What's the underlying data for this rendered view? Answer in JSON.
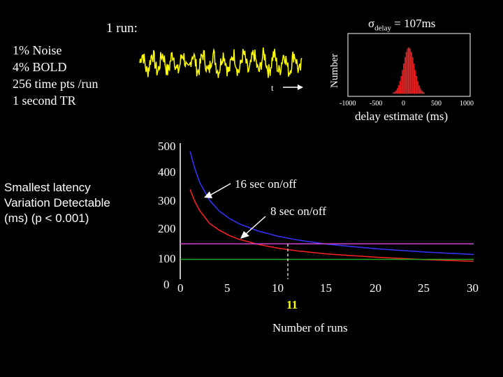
{
  "run_label": "1 run:",
  "parameters": [
    "1% Noise",
    "4% BOLD",
    "256 time pts /run",
    "1 second TR"
  ],
  "timeseries": {
    "axis_label": "t",
    "color": "#ffff00"
  },
  "sigma": {
    "symbol": "σ",
    "subscript": "delay",
    "value": "= 107ms"
  },
  "histogram": {
    "type": "bar",
    "ylabel": "Number",
    "xlabel": "delay estimate (ms)",
    "xticks": [
      "-1000",
      "-500",
      "0",
      "500",
      "1000"
    ],
    "color": "#cc0000"
  },
  "main_ylabel": [
    "Smallest latency",
    "Variation Detectable",
    "(ms) (p < 0.001)"
  ],
  "marked_runs": "11",
  "chart_data": {
    "type": "line",
    "xlabel": "Number of runs",
    "xlim": [
      0,
      30
    ],
    "ylim": [
      0,
      500
    ],
    "xticks": [
      "0",
      "5",
      "10",
      "15",
      "20",
      "25",
      "30"
    ],
    "yticks": [
      "0",
      "100",
      "200",
      "300",
      "400",
      "500"
    ],
    "marker_x": 11,
    "annotations": [
      "16 sec on/off",
      "8 sec on/off"
    ],
    "series": [
      {
        "name": "16 sec on/off",
        "color": "#3333ff",
        "x": [
          1,
          1.5,
          2,
          3,
          4,
          5,
          6,
          8,
          10,
          12,
          15,
          20,
          25,
          30
        ],
        "y": [
          470,
          405,
          355,
          290,
          250,
          224,
          204,
          177,
          158,
          144,
          129,
          112,
          100,
          91
        ]
      },
      {
        "name": "8 sec on/off",
        "color": "#ff2222",
        "x": [
          1,
          1.5,
          2,
          3,
          4,
          5,
          6,
          8,
          10,
          12,
          15,
          20,
          25,
          30
        ],
        "y": [
          330,
          285,
          252,
          205,
          180,
          161,
          147,
          128,
          114,
          104,
          93,
          81,
          72,
          66
        ]
      },
      {
        "name": "",
        "color": "#cc44cc",
        "x": [
          0,
          30
        ],
        "y": [
          130,
          130
        ]
      },
      {
        "name": "",
        "color": "#22aa22",
        "x": [
          0,
          30
        ],
        "y": [
          73,
          73
        ]
      }
    ]
  }
}
